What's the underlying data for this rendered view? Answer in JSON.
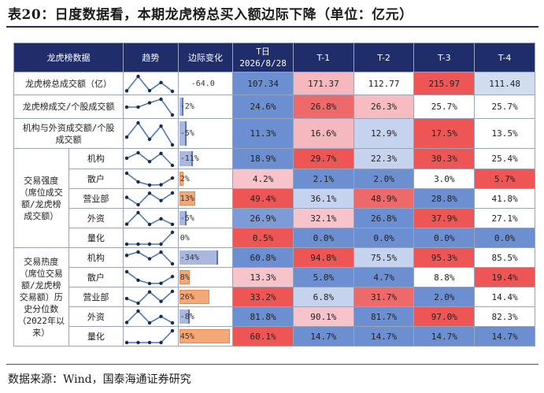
{
  "title": "表20：日度数据看，本期龙虎榜总买入额边际下降（单位：亿元）",
  "source": "数据来源：Wind，国泰海通证券研究",
  "headers": {
    "col_data": "龙虎榜数据",
    "col_trend": "趋势",
    "col_delta": "边际变化",
    "col_t_label": "T日",
    "col_t_date": "2026/8/28",
    "col_t1": "T-1",
    "col_t2": "T-2",
    "col_t3": "T-3",
    "col_t4": "T-4"
  },
  "groups": {
    "strength": "交易强度（席位成交额/龙虎榜成交额）",
    "heat": "交易热度（席位交易额/龙虎榜交易额）历史分位数（2022年以来）"
  },
  "colors": {
    "header_bg": "#1f2d6a",
    "bar_blue": "#aab8e0",
    "bar_orange": "#f4a878"
  },
  "rows": [
    {
      "label": "龙虎榜总成交额（亿）",
      "delta": "-64.0",
      "delta_bar": 0,
      "bar_color": "none",
      "cells": [
        {
          "v": "107.34",
          "c": "#6b8fd0"
        },
        {
          "v": "171.37",
          "c": "#f6b8bf"
        },
        {
          "v": "112.77",
          "c": "#ffffff"
        },
        {
          "v": "215.97",
          "c": "#ee5656"
        },
        {
          "v": "111.48",
          "c": "#d2dcef"
        }
      ],
      "trend": [
        107.34,
        171.37,
        112.77,
        215.97,
        111.48
      ]
    },
    {
      "label": "龙虎榜成交/个股成交额",
      "delta": "-2%",
      "delta_bar": 0.02,
      "bar_color": "blue",
      "cells": [
        {
          "v": "24.6%",
          "c": "#6b8fd0"
        },
        {
          "v": "26.8%",
          "c": "#ee6a6a"
        },
        {
          "v": "26.3%",
          "c": "#f6bcc2"
        },
        {
          "v": "25.7%",
          "c": "#ffffff"
        },
        {
          "v": "25.7%",
          "c": "#ffffff"
        }
      ],
      "trend": [
        24.6,
        26.8,
        26.3,
        25.7,
        25.7
      ]
    },
    {
      "label": "机构与外资成交额/个股成交额",
      "delta": "-5%",
      "delta_bar": 0.05,
      "bar_color": "blue",
      "cells": [
        {
          "v": "11.3%",
          "c": "#6b8fd0"
        },
        {
          "v": "16.6%",
          "c": "#f6b8bf"
        },
        {
          "v": "12.9%",
          "c": "#c6d3ee"
        },
        {
          "v": "17.5%",
          "c": "#ee5656"
        },
        {
          "v": "13.5%",
          "c": "#ffffff"
        }
      ],
      "trend": [
        11.3,
        16.6,
        12.9,
        17.5,
        13.5
      ]
    },
    {
      "label": "机构",
      "group": "strength",
      "delta": "-11%",
      "delta_bar": 0.11,
      "bar_color": "blue",
      "cells": [
        {
          "v": "18.9%",
          "c": "#6b8fd0"
        },
        {
          "v": "29.7%",
          "c": "#ee5656"
        },
        {
          "v": "22.3%",
          "c": "#c6d3ee"
        },
        {
          "v": "30.3%",
          "c": "#ee5656"
        },
        {
          "v": "25.4%",
          "c": "#ffffff"
        }
      ],
      "trend": [
        18.9,
        29.7,
        22.3,
        30.3,
        25.4
      ]
    },
    {
      "label": "散户",
      "group": "strength",
      "delta": "2%",
      "delta_bar": 0.02,
      "bar_color": "orange",
      "cells": [
        {
          "v": "4.2%",
          "c": "#f6c4ca"
        },
        {
          "v": "2.1%",
          "c": "#6b8fd0"
        },
        {
          "v": "2.0%",
          "c": "#6b8fd0"
        },
        {
          "v": "3.0%",
          "c": "#ffffff"
        },
        {
          "v": "5.7%",
          "c": "#ee5656"
        }
      ],
      "trend": [
        4.2,
        2.1,
        2.0,
        3.0,
        5.7
      ]
    },
    {
      "label": "营业部",
      "group": "strength",
      "delta": "13%",
      "delta_bar": 0.13,
      "bar_color": "orange",
      "cells": [
        {
          "v": "49.4%",
          "c": "#ee5656"
        },
        {
          "v": "36.1%",
          "c": "#c6d3ee"
        },
        {
          "v": "48.9%",
          "c": "#ee6a6a"
        },
        {
          "v": "28.8%",
          "c": "#6b8fd0"
        },
        {
          "v": "41.8%",
          "c": "#ffffff"
        }
      ],
      "trend": [
        49.4,
        36.1,
        48.9,
        28.8,
        41.8
      ]
    },
    {
      "label": "外资",
      "group": "strength",
      "delta": "-5%",
      "delta_bar": 0.05,
      "bar_color": "blue",
      "cells": [
        {
          "v": "26.9%",
          "c": "#7d9bd6"
        },
        {
          "v": "32.1%",
          "c": "#f6c4ca"
        },
        {
          "v": "26.8%",
          "c": "#6b8fd0"
        },
        {
          "v": "37.9%",
          "c": "#ee5656"
        },
        {
          "v": "27.1%",
          "c": "#ffffff"
        }
      ],
      "trend": [
        26.9,
        32.1,
        26.8,
        37.9,
        27.1
      ]
    },
    {
      "label": "量化",
      "group": "strength",
      "delta": "0%",
      "delta_bar": 0,
      "bar_color": "none",
      "cells": [
        {
          "v": "0.5%",
          "c": "#ee5656"
        },
        {
          "v": "0.0%",
          "c": "#6b8fd0"
        },
        {
          "v": "0.0%",
          "c": "#6b8fd0"
        },
        {
          "v": "0.0%",
          "c": "#6b8fd0"
        },
        {
          "v": "0.0%",
          "c": "#6b8fd0"
        }
      ],
      "trend": [
        0.5,
        0.0,
        0.0,
        0.0,
        0.0
      ]
    },
    {
      "label": "机构",
      "group": "heat",
      "delta": "-34%",
      "delta_bar": 0.34,
      "bar_color": "blue",
      "cells": [
        {
          "v": "60.8%",
          "c": "#6b8fd0"
        },
        {
          "v": "94.8%",
          "c": "#ee5656"
        },
        {
          "v": "75.5%",
          "c": "#c6d3ee"
        },
        {
          "v": "95.3%",
          "c": "#ee5656"
        },
        {
          "v": "85.5%",
          "c": "#ffffff"
        }
      ],
      "trend": [
        60.8,
        94.8,
        75.5,
        95.3,
        85.5
      ]
    },
    {
      "label": "散户",
      "group": "heat",
      "delta": "8%",
      "delta_bar": 0.08,
      "bar_color": "orange",
      "cells": [
        {
          "v": "13.3%",
          "c": "#f6c4ca"
        },
        {
          "v": "5.0%",
          "c": "#6b8fd0"
        },
        {
          "v": "4.7%",
          "c": "#6b8fd0"
        },
        {
          "v": "8.8%",
          "c": "#ffffff"
        },
        {
          "v": "19.4%",
          "c": "#ee5656"
        }
      ],
      "trend": [
        13.3,
        5.0,
        4.7,
        8.8,
        19.4
      ]
    },
    {
      "label": "营业部",
      "group": "heat",
      "delta": "26%",
      "delta_bar": 0.26,
      "bar_color": "orange",
      "cells": [
        {
          "v": "33.2%",
          "c": "#ee5656"
        },
        {
          "v": "6.8%",
          "c": "#c6d3ee"
        },
        {
          "v": "31.7%",
          "c": "#ee6a6a"
        },
        {
          "v": "2.0%",
          "c": "#6b8fd0"
        },
        {
          "v": "14.4%",
          "c": "#ffffff"
        }
      ],
      "trend": [
        33.2,
        6.8,
        31.7,
        2.0,
        14.4
      ]
    },
    {
      "label": "外资",
      "group": "heat",
      "delta": "-8%",
      "delta_bar": 0.08,
      "bar_color": "blue",
      "cells": [
        {
          "v": "81.8%",
          "c": "#6b8fd0"
        },
        {
          "v": "90.1%",
          "c": "#f6c4ca"
        },
        {
          "v": "81.7%",
          "c": "#6b8fd0"
        },
        {
          "v": "97.0%",
          "c": "#ee5656"
        },
        {
          "v": "82.3%",
          "c": "#ffffff"
        }
      ],
      "trend": [
        81.8,
        90.1,
        81.7,
        97.0,
        82.3
      ]
    },
    {
      "label": "量化",
      "group": "heat",
      "delta": "45%",
      "delta_bar": 0.45,
      "bar_color": "orange",
      "cells": [
        {
          "v": "60.1%",
          "c": "#ee5656"
        },
        {
          "v": "14.7%",
          "c": "#6b8fd0"
        },
        {
          "v": "14.7%",
          "c": "#6b8fd0"
        },
        {
          "v": "14.7%",
          "c": "#6b8fd0"
        },
        {
          "v": "14.7%",
          "c": "#6b8fd0"
        }
      ],
      "trend": [
        60.1,
        14.7,
        14.7,
        14.7,
        14.7
      ]
    }
  ]
}
